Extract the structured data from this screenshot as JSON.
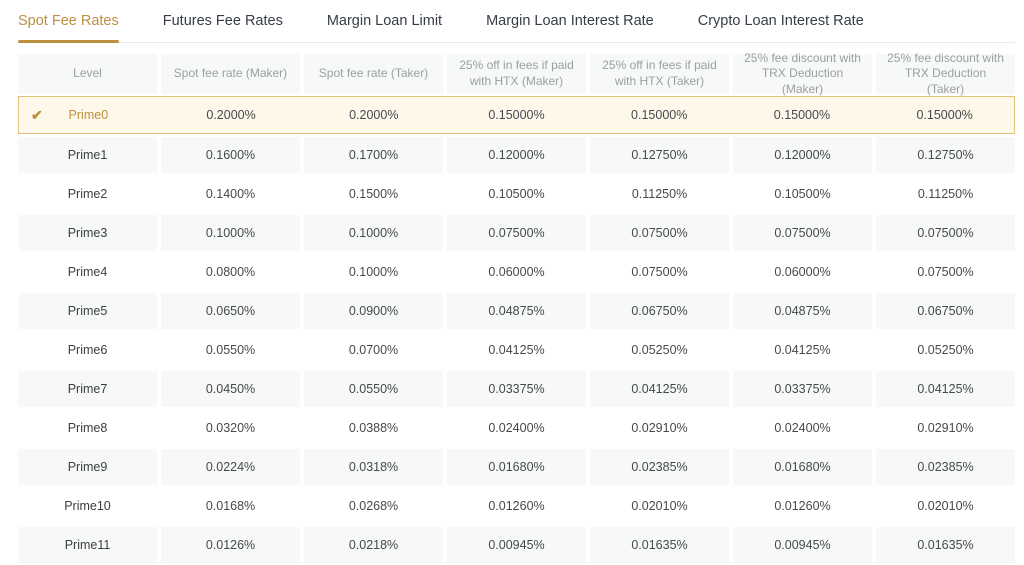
{
  "colors": {
    "accent": "#bd9040",
    "highlight_bg": "#fdf8ea",
    "highlight_border": "#e2c179",
    "header_bg": "#f7f8f8",
    "shaded_row_bg": "#f7f8f8"
  },
  "tabs": [
    {
      "label": "Spot Fee Rates",
      "active": true
    },
    {
      "label": "Futures Fee Rates",
      "active": false
    },
    {
      "label": "Margin Loan Limit",
      "active": false
    },
    {
      "label": "Margin Loan Interest Rate",
      "active": false
    },
    {
      "label": "Crypto Loan Interest Rate",
      "active": false
    }
  ],
  "table": {
    "columns": [
      "Level",
      "Spot fee rate (Maker)",
      "Spot fee rate (Taker)",
      "25% off in fees if paid with HTX (Maker)",
      "25% off in fees if paid with HTX (Taker)",
      "25% fee discount with TRX Deduction (Maker)",
      "25% fee discount with TRX Deduction (Taker)"
    ],
    "selected_icon": "checkmark-icon",
    "check_glyph": "✔",
    "rows": [
      {
        "level": "Prime0",
        "selected": true,
        "values": [
          "0.2000%",
          "0.2000%",
          "0.15000%",
          "0.15000%",
          "0.15000%",
          "0.15000%"
        ]
      },
      {
        "level": "Prime1",
        "selected": false,
        "values": [
          "0.1600%",
          "0.1700%",
          "0.12000%",
          "0.12750%",
          "0.12000%",
          "0.12750%"
        ]
      },
      {
        "level": "Prime2",
        "selected": false,
        "values": [
          "0.1400%",
          "0.1500%",
          "0.10500%",
          "0.11250%",
          "0.10500%",
          "0.11250%"
        ]
      },
      {
        "level": "Prime3",
        "selected": false,
        "values": [
          "0.1000%",
          "0.1000%",
          "0.07500%",
          "0.07500%",
          "0.07500%",
          "0.07500%"
        ]
      },
      {
        "level": "Prime4",
        "selected": false,
        "values": [
          "0.0800%",
          "0.1000%",
          "0.06000%",
          "0.07500%",
          "0.06000%",
          "0.07500%"
        ]
      },
      {
        "level": "Prime5",
        "selected": false,
        "values": [
          "0.0650%",
          "0.0900%",
          "0.04875%",
          "0.06750%",
          "0.04875%",
          "0.06750%"
        ]
      },
      {
        "level": "Prime6",
        "selected": false,
        "values": [
          "0.0550%",
          "0.0700%",
          "0.04125%",
          "0.05250%",
          "0.04125%",
          "0.05250%"
        ]
      },
      {
        "level": "Prime7",
        "selected": false,
        "values": [
          "0.0450%",
          "0.0550%",
          "0.03375%",
          "0.04125%",
          "0.03375%",
          "0.04125%"
        ]
      },
      {
        "level": "Prime8",
        "selected": false,
        "values": [
          "0.0320%",
          "0.0388%",
          "0.02400%",
          "0.02910%",
          "0.02400%",
          "0.02910%"
        ]
      },
      {
        "level": "Prime9",
        "selected": false,
        "values": [
          "0.0224%",
          "0.0318%",
          "0.01680%",
          "0.02385%",
          "0.01680%",
          "0.02385%"
        ]
      },
      {
        "level": "Prime10",
        "selected": false,
        "values": [
          "0.0168%",
          "0.0268%",
          "0.01260%",
          "0.02010%",
          "0.01260%",
          "0.02010%"
        ]
      },
      {
        "level": "Prime11",
        "selected": false,
        "values": [
          "0.0126%",
          "0.0218%",
          "0.00945%",
          "0.01635%",
          "0.00945%",
          "0.01635%"
        ]
      }
    ]
  }
}
